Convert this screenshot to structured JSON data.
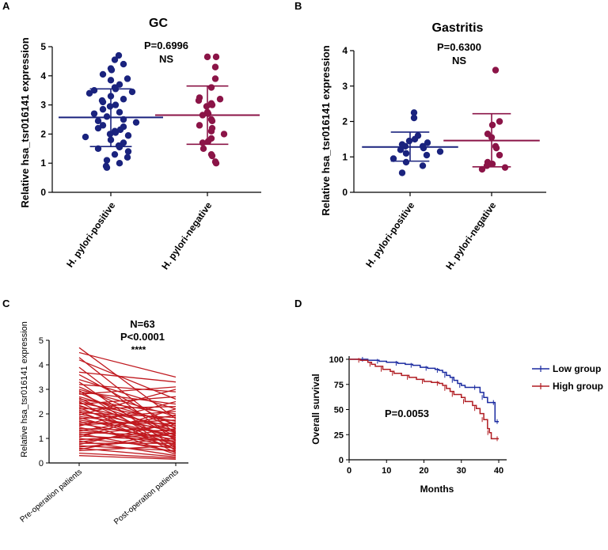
{
  "colors": {
    "positive": "#1a237e",
    "negative": "#8b1447",
    "paired": "#c0191f",
    "low_group": "#1a2aa0",
    "high_group": "#b01c22",
    "axis": "#000000"
  },
  "chart_data": [
    {
      "panel": "A",
      "type": "scatter",
      "title": "GC",
      "annotations": [
        "P=0.6996",
        "NS"
      ],
      "ylabel": "Relative hsa_tsr016141 expression",
      "ylim": [
        0,
        5
      ],
      "yticks": [
        "0",
        "1",
        "2",
        "3",
        "4",
        "5"
      ],
      "categories": [
        "H. pylori-positive",
        "H. pylori-negative"
      ],
      "series": [
        {
          "name": "H. pylori-positive",
          "mean": 2.57,
          "sd_low": 1.57,
          "sd_high": 3.55,
          "values": [
            4.7,
            4.55,
            4.4,
            4.25,
            4.2,
            4.05,
            3.9,
            3.85,
            3.7,
            3.6,
            3.55,
            3.5,
            3.45,
            3.4,
            3.3,
            3.2,
            3.15,
            3.1,
            3.0,
            2.95,
            2.85,
            2.75,
            2.7,
            2.6,
            2.5,
            2.45,
            2.4,
            2.3,
            2.25,
            2.2,
            2.15,
            2.1,
            2.05,
            2.0,
            1.95,
            1.9,
            1.8,
            1.7,
            1.6,
            1.55,
            1.5,
            1.4,
            1.3,
            1.2,
            1.1,
            1.0,
            0.9,
            0.85
          ]
        },
        {
          "name": "H. pylori-negative",
          "mean": 2.65,
          "sd_low": 1.65,
          "sd_high": 3.65,
          "values": [
            4.65,
            4.65,
            4.3,
            3.9,
            3.6,
            3.25,
            3.2,
            3.15,
            3.05,
            3.0,
            2.95,
            2.75,
            2.7,
            2.65,
            2.5,
            2.45,
            2.3,
            2.2,
            2.1,
            2.0,
            1.85,
            1.75,
            1.7,
            1.5,
            1.3,
            1.25,
            1.05,
            1.0
          ]
        }
      ]
    },
    {
      "panel": "B",
      "type": "scatter",
      "title": "Gastritis",
      "annotations": [
        "P=0.6300",
        "NS"
      ],
      "ylabel": "Relative hsa_tsr016141 expression",
      "ylim": [
        0,
        4
      ],
      "yticks": [
        "0",
        "1",
        "2",
        "3",
        "4"
      ],
      "categories": [
        "H. pylori-positive",
        "H. pylori-negative"
      ],
      "series": [
        {
          "name": "H. pylori-positive",
          "mean": 1.28,
          "sd_low": 0.88,
          "sd_high": 1.7,
          "values": [
            2.25,
            2.1,
            1.6,
            1.5,
            1.45,
            1.4,
            1.35,
            1.3,
            1.3,
            1.25,
            1.2,
            1.15,
            1.1,
            1.05,
            0.95,
            0.85,
            0.75,
            0.55
          ]
        },
        {
          "name": "H. pylori-negative",
          "mean": 1.46,
          "sd_low": 0.72,
          "sd_high": 2.22,
          "values": [
            3.45,
            2.0,
            1.9,
            1.65,
            1.55,
            1.3,
            1.25,
            1.05,
            0.85,
            0.8,
            0.75,
            0.7,
            0.65
          ]
        }
      ]
    },
    {
      "panel": "C",
      "type": "line",
      "title": "N=63",
      "annotations": [
        "P<0.0001",
        "****"
      ],
      "ylabel": "Relative hsa_tsr016141 expression",
      "ylim": [
        0,
        5
      ],
      "yticks": [
        "0",
        "1",
        "2",
        "3",
        "4",
        "5"
      ],
      "categories": [
        "Pre-operation patients",
        "Post-operation patients"
      ],
      "pairs": [
        [
          4.7,
          1.8
        ],
        [
          4.5,
          3.5
        ],
        [
          4.3,
          1.2
        ],
        [
          4.2,
          2.6
        ],
        [
          3.9,
          0.9
        ],
        [
          3.7,
          3.3
        ],
        [
          3.6,
          1.5
        ],
        [
          3.4,
          2.2
        ],
        [
          3.3,
          0.6
        ],
        [
          3.2,
          2.9
        ],
        [
          3.1,
          1.4
        ],
        [
          3.0,
          1.9
        ],
        [
          2.95,
          0.5
        ],
        [
          2.9,
          2.4
        ],
        [
          2.85,
          1.1
        ],
        [
          2.8,
          3.1
        ],
        [
          2.7,
          1.6
        ],
        [
          2.65,
          0.8
        ],
        [
          2.6,
          2.0
        ],
        [
          2.55,
          1.3
        ],
        [
          2.5,
          0.4
        ],
        [
          2.45,
          1.7
        ],
        [
          2.4,
          2.7
        ],
        [
          2.35,
          1.0
        ],
        [
          2.3,
          1.45
        ],
        [
          2.25,
          0.7
        ],
        [
          2.2,
          2.3
        ],
        [
          2.15,
          1.25
        ],
        [
          2.1,
          0.55
        ],
        [
          2.05,
          1.85
        ],
        [
          2.0,
          1.05
        ],
        [
          1.95,
          3.0
        ],
        [
          1.9,
          1.35
        ],
        [
          1.85,
          0.75
        ],
        [
          1.8,
          2.1
        ],
        [
          1.75,
          1.15
        ],
        [
          1.7,
          0.35
        ],
        [
          1.65,
          1.6
        ],
        [
          1.6,
          0.95
        ],
        [
          1.55,
          1.75
        ],
        [
          1.5,
          2.5
        ],
        [
          1.45,
          0.65
        ],
        [
          1.4,
          1.3
        ],
        [
          1.35,
          0.85
        ],
        [
          1.3,
          1.95
        ],
        [
          1.25,
          1.1
        ],
        [
          1.2,
          0.45
        ],
        [
          1.15,
          1.55
        ],
        [
          1.1,
          0.9
        ],
        [
          1.05,
          2.2
        ],
        [
          1.0,
          0.6
        ],
        [
          0.95,
          1.2
        ],
        [
          0.9,
          0.3
        ],
        [
          0.85,
          1.4
        ],
        [
          0.8,
          0.8
        ],
        [
          0.75,
          1.65
        ],
        [
          0.7,
          0.5
        ],
        [
          0.65,
          1.0
        ],
        [
          0.6,
          0.25
        ],
        [
          0.55,
          1.25
        ],
        [
          0.5,
          0.7
        ],
        [
          0.4,
          0.2
        ],
        [
          0.3,
          0.15
        ]
      ]
    },
    {
      "panel": "D",
      "type": "line",
      "title": "",
      "annotations": [
        "P=0.0053"
      ],
      "xlabel": "Months",
      "ylabel": "Overall survival",
      "xlim": [
        0,
        40
      ],
      "ylim": [
        0,
        100
      ],
      "xticks": [
        "0",
        "10",
        "20",
        "30",
        "40"
      ],
      "yticks": [
        "0",
        "25",
        "50",
        "75",
        "100"
      ],
      "legend_position": "top-right",
      "series": [
        {
          "name": "Low group",
          "steps": [
            [
              0,
              100
            ],
            [
              4,
              100
            ],
            [
              5,
              99
            ],
            [
              8,
              98
            ],
            [
              10,
              97
            ],
            [
              13,
              96
            ],
            [
              15,
              95
            ],
            [
              17,
              94
            ],
            [
              19,
              92
            ],
            [
              21,
              91
            ],
            [
              23,
              90
            ],
            [
              24,
              89
            ],
            [
              25,
              87
            ],
            [
              26,
              84
            ],
            [
              27,
              82
            ],
            [
              28,
              79
            ],
            [
              29,
              76
            ],
            [
              30,
              74
            ],
            [
              31,
              72
            ],
            [
              34,
              72
            ],
            [
              35,
              67
            ],
            [
              36,
              62
            ],
            [
              37,
              57
            ],
            [
              39,
              57
            ],
            [
              39,
              38
            ],
            [
              40,
              38
            ]
          ]
        },
        {
          "name": "High group",
          "steps": [
            [
              0,
              100
            ],
            [
              3,
              99
            ],
            [
              5,
              97
            ],
            [
              6,
              95
            ],
            [
              7,
              93
            ],
            [
              9,
              90
            ],
            [
              11,
              88
            ],
            [
              12,
              86
            ],
            [
              14,
              84
            ],
            [
              16,
              82
            ],
            [
              18,
              80
            ],
            [
              20,
              78
            ],
            [
              22,
              77
            ],
            [
              24,
              76
            ],
            [
              25,
              74
            ],
            [
              26,
              71
            ],
            [
              27,
              68
            ],
            [
              28,
              65
            ],
            [
              30,
              62
            ],
            [
              31,
              58
            ],
            [
              33,
              54
            ],
            [
              34,
              51
            ],
            [
              35,
              46
            ],
            [
              36,
              40
            ],
            [
              37,
              31
            ],
            [
              37.5,
              27
            ],
            [
              38,
              21
            ],
            [
              40,
              21
            ]
          ]
        }
      ]
    }
  ],
  "panel_labels": [
    "A",
    "B",
    "C",
    "D"
  ]
}
